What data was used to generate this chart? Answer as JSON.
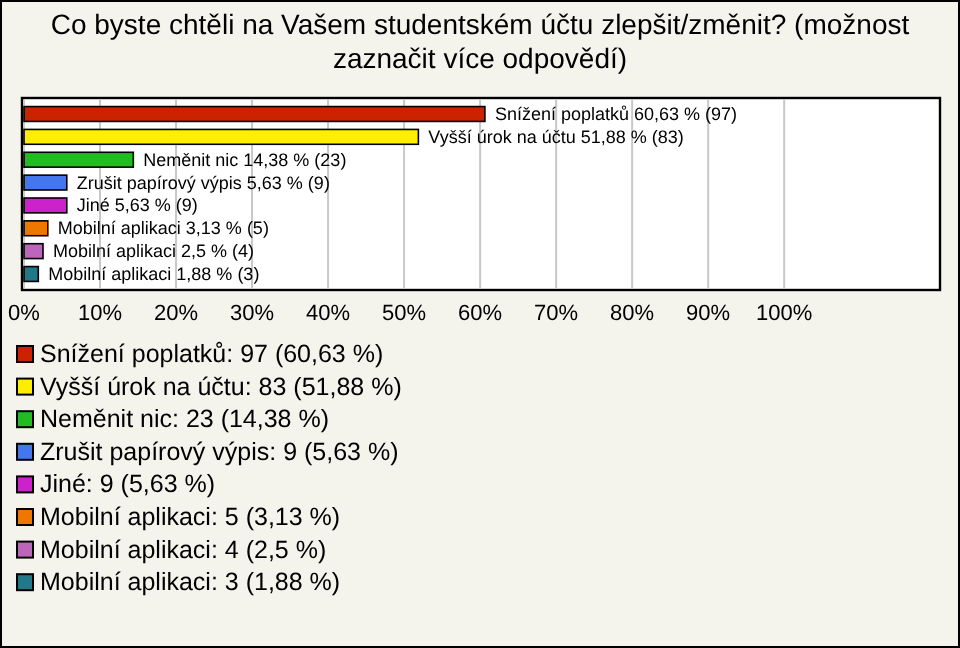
{
  "chart_data": {
    "type": "bar",
    "orientation": "horizontal",
    "title": "Co byste chtěli na Vašem studentském účtu zlepšit/změnit? (možnost zaznačit více odpovědí)",
    "categories": [
      "Snížení poplatků",
      "Vyšší úrok na účtu",
      "Neměnit nic",
      "Zrušit papírový výpis",
      "Jiné",
      "Mobilní aplikaci",
      "Mobilní aplikaci",
      "Mobilní aplikaci"
    ],
    "values": [
      60.63,
      51.88,
      14.38,
      5.63,
      5.63,
      3.13,
      2.5,
      1.88
    ],
    "value_labels": [
      "60,63 % (97)",
      "51,88 % (83)",
      "14,38 % (23)",
      "5,63 % (9)",
      "5,63 % (9)",
      "3,13 % (5)",
      "2,5 % (4)",
      "1,88 % (3)"
    ],
    "colors": [
      "#cc2200",
      "#ffee00",
      "#22bb22",
      "#4477ee",
      "#cc22cc",
      "#ee7700",
      "#bb66bb",
      "#227788"
    ],
    "xlim": [
      0,
      120.5
    ],
    "xticks": [
      {
        "value": 0,
        "label": "0%"
      },
      {
        "value": 10,
        "label": "10%"
      },
      {
        "value": 20,
        "label": "20%"
      },
      {
        "value": 30,
        "label": "30%"
      },
      {
        "value": 40,
        "label": "40%"
      },
      {
        "value": 50,
        "label": "50%"
      },
      {
        "value": 60,
        "label": "60%"
      },
      {
        "value": 70,
        "label": "70%"
      },
      {
        "value": 80,
        "label": "80%"
      },
      {
        "value": 90,
        "label": "90%"
      },
      {
        "value": 100,
        "label": "100%"
      }
    ],
    "grid": "x",
    "annotations": [
      "Snížení poplatků: 97 (60,63 %)",
      "Vyšší úrok na účtu: 83 (51,88 %)",
      "Neměnit nic: 23 (14,38 %)",
      "Zrušit papírový výpis: 9 (5,63 %)",
      "Jiné: 9 (5,63 %)",
      "Mobilní aplikaci: 5 (3,13 %)",
      "Mobilní aplikaci: 4 (2,5 %)",
      "Mobilní aplikaci: 3 (1,88 %)"
    ]
  }
}
